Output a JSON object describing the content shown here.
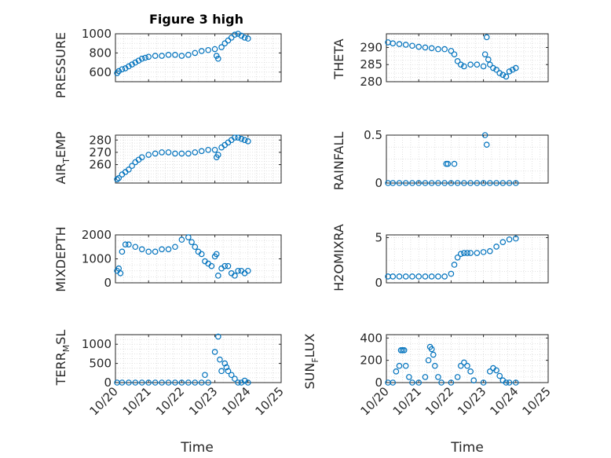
{
  "figure": {
    "title": "Figure 3 high"
  },
  "chart_data": [
    {
      "type": "scatter",
      "title": "Figure 3 high",
      "ylabel": "PRESSURE",
      "xlabel": "",
      "ylim": [
        500,
        1000
      ],
      "yticks": [
        600,
        800,
        1000
      ],
      "x_tick_labels": [
        "10/20",
        "10/21",
        "10/22",
        "10/23",
        "10/24",
        "10/25"
      ],
      "xlim": [
        "10/20",
        "10/25"
      ],
      "grid": "minor dotted",
      "color": "#0072BD",
      "x": [
        20.05,
        20.1,
        20.2,
        20.3,
        20.4,
        20.5,
        20.6,
        20.7,
        20.8,
        20.9,
        21.0,
        21.2,
        21.4,
        21.6,
        21.8,
        22.0,
        22.2,
        22.4,
        22.6,
        22.8,
        23.0,
        23.05,
        23.1,
        23.2,
        23.3,
        23.4,
        23.5,
        23.6,
        23.7,
        23.8,
        23.9,
        24.0
      ],
      "y": [
        590,
        610,
        630,
        640,
        660,
        680,
        700,
        720,
        740,
        750,
        760,
        770,
        770,
        780,
        780,
        770,
        780,
        800,
        820,
        830,
        840,
        770,
        740,
        860,
        900,
        930,
        960,
        990,
        1000,
        980,
        960,
        950
      ]
    },
    {
      "type": "scatter",
      "title": "",
      "ylabel": "THETA",
      "xlabel": "",
      "ylim": [
        280,
        294
      ],
      "yticks": [
        280,
        285,
        290
      ],
      "x_tick_labels": [
        "10/20",
        "10/21",
        "10/22",
        "10/23",
        "10/24",
        "10/25"
      ],
      "grid": "minor dotted",
      "color": "#0072BD",
      "x": [
        20.05,
        20.2,
        20.4,
        20.6,
        20.8,
        21.0,
        21.2,
        21.4,
        21.6,
        21.8,
        22.0,
        22.1,
        22.2,
        22.3,
        22.4,
        22.6,
        22.8,
        23.0,
        23.05,
        23.1,
        23.15,
        23.2,
        23.3,
        23.4,
        23.5,
        23.6,
        23.7,
        23.8,
        23.9,
        24.0
      ],
      "y": [
        291.5,
        291.2,
        291,
        290.8,
        290.5,
        290.2,
        290,
        289.8,
        289.5,
        289.5,
        289,
        288,
        286,
        285,
        284.5,
        285,
        285,
        284.5,
        288,
        293,
        286.5,
        285,
        284,
        283.5,
        282.5,
        282,
        281.5,
        283,
        283.5,
        284
      ]
    },
    {
      "type": "scatter",
      "title": "",
      "ylabel": "AIR_TEMP",
      "xlabel": "",
      "ylim": [
        245,
        284
      ],
      "yticks": [
        260,
        270,
        280
      ],
      "x_tick_labels": [
        "10/20",
        "10/21",
        "10/22",
        "10/23",
        "10/24",
        "10/25"
      ],
      "grid": "minor dotted",
      "color": "#0072BD",
      "x": [
        20.05,
        20.1,
        20.2,
        20.3,
        20.4,
        20.5,
        20.6,
        20.7,
        20.8,
        21.0,
        21.2,
        21.4,
        21.6,
        21.8,
        22.0,
        22.2,
        22.4,
        22.6,
        22.8,
        23.0,
        23.05,
        23.1,
        23.2,
        23.3,
        23.4,
        23.5,
        23.6,
        23.7,
        23.8,
        23.9,
        24.0
      ],
      "y": [
        248,
        249,
        252,
        254,
        256,
        259,
        262,
        264,
        266,
        268,
        269,
        270,
        270,
        269,
        269,
        269,
        270,
        271,
        272,
        272,
        266,
        268,
        274,
        276,
        278,
        280,
        282,
        282,
        281,
        280,
        279
      ]
    },
    {
      "type": "scatter",
      "title": "",
      "ylabel": "RAINFALL",
      "xlabel": "",
      "ylim": [
        0,
        0.5
      ],
      "yticks": [
        0,
        0.5
      ],
      "x_tick_labels": [
        "10/20",
        "10/21",
        "10/22",
        "10/23",
        "10/24",
        "10/25"
      ],
      "grid": "minor dotted",
      "color": "#0072BD",
      "x": [
        20.05,
        20.2,
        20.4,
        20.6,
        20.8,
        21.0,
        21.2,
        21.4,
        21.6,
        21.8,
        21.85,
        21.9,
        22.0,
        22.1,
        22.2,
        22.4,
        22.6,
        22.8,
        23.0,
        23.05,
        23.1,
        23.2,
        23.4,
        23.6,
        23.8,
        24.0
      ],
      "y": [
        0,
        0,
        0,
        0,
        0,
        0,
        0,
        0,
        0,
        0,
        0.2,
        0.2,
        0,
        0.2,
        0,
        0,
        0,
        0,
        0,
        0.5,
        0.4,
        0,
        0,
        0,
        0,
        0
      ]
    },
    {
      "type": "scatter",
      "title": "",
      "ylabel": "MIXDEPTH",
      "xlabel": "",
      "ylim": [
        0,
        2000
      ],
      "yticks": [
        0,
        1000,
        2000
      ],
      "x_tick_labels": [
        "10/20",
        "10/21",
        "10/22",
        "10/23",
        "10/24",
        "10/25"
      ],
      "grid": "minor dotted",
      "color": "#0072BD",
      "x": [
        20.05,
        20.1,
        20.15,
        20.2,
        20.3,
        20.4,
        20.6,
        20.8,
        21.0,
        21.2,
        21.4,
        21.6,
        21.8,
        22.0,
        22.2,
        22.3,
        22.4,
        22.5,
        22.6,
        22.7,
        22.8,
        22.9,
        23.0,
        23.05,
        23.1,
        23.2,
        23.3,
        23.4,
        23.5,
        23.6,
        23.7,
        23.8,
        23.9,
        24.0
      ],
      "y": [
        500,
        600,
        400,
        1300,
        1600,
        1600,
        1500,
        1400,
        1300,
        1300,
        1400,
        1400,
        1500,
        1800,
        1900,
        1700,
        1500,
        1300,
        1200,
        900,
        800,
        700,
        1100,
        1200,
        300,
        600,
        700,
        700,
        400,
        300,
        500,
        500,
        400,
        500
      ]
    },
    {
      "type": "scatter",
      "title": "",
      "ylabel": "H2OMIXRA",
      "xlabel": "",
      "ylim": [
        0,
        5.3
      ],
      "yticks": [
        0,
        5
      ],
      "x_tick_labels": [
        "10/20",
        "10/21",
        "10/22",
        "10/23",
        "10/24",
        "10/25"
      ],
      "grid": "minor dotted",
      "color": "#0072BD",
      "x": [
        20.05,
        20.2,
        20.4,
        20.6,
        20.8,
        21.0,
        21.2,
        21.4,
        21.6,
        21.8,
        22.0,
        22.1,
        22.2,
        22.3,
        22.4,
        22.5,
        22.6,
        22.8,
        23.0,
        23.2,
        23.4,
        23.6,
        23.8,
        24.0
      ],
      "y": [
        0.7,
        0.7,
        0.7,
        0.7,
        0.7,
        0.7,
        0.7,
        0.7,
        0.7,
        0.7,
        1.0,
        2.0,
        2.8,
        3.2,
        3.3,
        3.3,
        3.3,
        3.3,
        3.4,
        3.5,
        4.0,
        4.5,
        4.8,
        4.9
      ]
    },
    {
      "type": "scatter",
      "title": "",
      "ylabel": "TERR_MSL",
      "xlabel": "Time",
      "ylim": [
        0,
        1250
      ],
      "yticks": [
        0,
        500,
        1000
      ],
      "x_tick_labels": [
        "10/20",
        "10/21",
        "10/22",
        "10/23",
        "10/24",
        "10/25"
      ],
      "grid": "minor dotted",
      "color": "#0072BD",
      "x": [
        20.05,
        20.2,
        20.4,
        20.6,
        20.8,
        21.0,
        21.2,
        21.4,
        21.6,
        21.8,
        22.0,
        22.2,
        22.4,
        22.6,
        22.7,
        22.8,
        23.0,
        23.1,
        23.15,
        23.2,
        23.3,
        23.35,
        23.4,
        23.5,
        23.6,
        23.7,
        23.8,
        23.9,
        24.0
      ],
      "y": [
        0,
        0,
        0,
        0,
        0,
        0,
        0,
        0,
        0,
        0,
        0,
        0,
        0,
        0,
        200,
        0,
        800,
        1200,
        600,
        300,
        500,
        400,
        300,
        200,
        100,
        0,
        0,
        50,
        0
      ]
    },
    {
      "type": "scatter",
      "title": "",
      "ylabel": "SUN_FLUX",
      "xlabel": "Time",
      "ylim": [
        0,
        430
      ],
      "yticks": [
        0,
        200,
        400
      ],
      "x_tick_labels": [
        "10/20",
        "10/21",
        "10/22",
        "10/23",
        "10/24",
        "10/25"
      ],
      "grid": "minor dotted",
      "color": "#0072BD",
      "x": [
        20.05,
        20.2,
        20.3,
        20.4,
        20.45,
        20.5,
        20.55,
        20.6,
        20.7,
        20.8,
        21.0,
        21.2,
        21.3,
        21.35,
        21.4,
        21.45,
        21.5,
        21.6,
        21.7,
        22.0,
        22.2,
        22.3,
        22.4,
        22.5,
        22.6,
        22.7,
        23.0,
        23.2,
        23.3,
        23.4,
        23.5,
        23.6,
        23.7,
        23.8,
        24.0
      ],
      "y": [
        0,
        0,
        100,
        150,
        290,
        290,
        290,
        150,
        50,
        0,
        0,
        50,
        200,
        320,
        300,
        250,
        150,
        50,
        0,
        0,
        50,
        150,
        180,
        150,
        100,
        20,
        0,
        100,
        130,
        110,
        60,
        20,
        0,
        0,
        0
      ]
    }
  ],
  "labels": {
    "p1_ylabel": "PRESSURE",
    "p2_ylabel": "THETA",
    "p3_ylabel_main": "AIR",
    "p3_ylabel_sub": "T",
    "p3_ylabel_rest": "EMP",
    "p4_ylabel": "RAINFALL",
    "p5_ylabel": "MIXDEPTH",
    "p6_ylabel": "H2OMIXRA",
    "p7_ylabel_main": "TERR",
    "p7_ylabel_sub": "M",
    "p7_ylabel_rest": "SL",
    "p8_ylabel_main": "SUN",
    "p8_ylabel_sub": "F",
    "p8_ylabel_rest": "LUX",
    "xlabel_left": "Time",
    "xlabel_right": "Time"
  }
}
